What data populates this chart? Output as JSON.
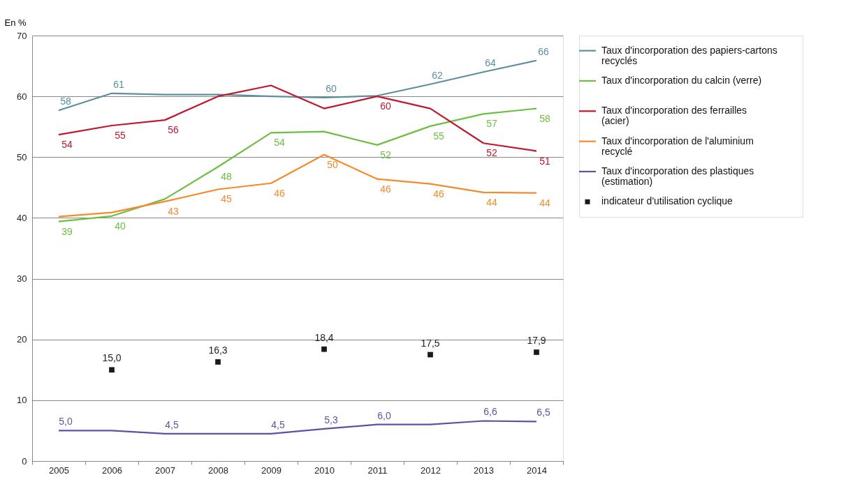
{
  "chart_data": {
    "type": "line",
    "ylabel": "En %",
    "categories": [
      "2005",
      "2006",
      "2007",
      "2008",
      "2009",
      "2010",
      "2011",
      "2012",
      "2013",
      "2014"
    ],
    "ylim": [
      0,
      70
    ],
    "yticks": [
      0,
      10,
      20,
      30,
      40,
      50,
      60,
      70
    ],
    "grid": "y",
    "legend": "right",
    "series": [
      {
        "name": "Taux d'incorporation des papiers-cartons recyclés",
        "color": "#5b8fa0",
        "values": [
          57.7,
          60.5,
          60.3,
          60.3,
          60.0,
          59.8,
          60.1,
          62.0,
          64.0,
          65.9
        ],
        "value_labels": [
          "58",
          "61",
          null,
          null,
          null,
          "60",
          null,
          "62",
          "64",
          "66"
        ]
      },
      {
        "name": "Taux d'incorporation du calcin (verre)",
        "color": "#6cbf3f",
        "values": [
          39.4,
          40.3,
          43.1,
          48.4,
          54.0,
          54.2,
          52.0,
          55.1,
          57.1,
          58.0
        ],
        "value_labels": [
          "39",
          "40",
          null,
          "48",
          "54",
          null,
          "52",
          "55",
          "57",
          "58"
        ]
      },
      {
        "name": "Taux d'incorporation des ferrailles (acier)",
        "color": "#c0172d",
        "values": [
          53.7,
          55.2,
          56.1,
          60.0,
          61.8,
          58.0,
          60.0,
          58.0,
          52.3,
          51.0
        ],
        "value_labels": [
          "54",
          "55",
          "56",
          null,
          null,
          null,
          "60",
          null,
          "52",
          "51"
        ]
      },
      {
        "name": "Taux d'incorporation de l'aluminium recyclé",
        "color": "#f7892a",
        "values": [
          40.2,
          40.9,
          42.7,
          44.7,
          45.7,
          50.4,
          46.4,
          45.6,
          44.2,
          44.1
        ],
        "value_labels": [
          null,
          null,
          "43",
          "45",
          "46",
          "50",
          "46",
          "46",
          "44",
          "44"
        ]
      },
      {
        "name": "Taux d'incorporation des plastiques (estimation)",
        "color": "#5853a5",
        "values": [
          5.0,
          5.0,
          4.5,
          4.5,
          4.5,
          5.3,
          6.0,
          6.0,
          6.6,
          6.5
        ],
        "value_labels": [
          "5,0",
          null,
          "4,5",
          null,
          "4,5",
          "5,3",
          "6,0",
          null,
          "6,6",
          "6,5"
        ]
      },
      {
        "name": "indicateur d'utilisation cyclique",
        "type": "scatter",
        "marker": "square",
        "color": "#1a1a1a",
        "values": [
          null,
          15.0,
          null,
          16.3,
          null,
          18.4,
          null,
          17.5,
          null,
          17.9
        ],
        "value_labels": [
          null,
          "15,0",
          null,
          "16,3",
          null,
          "18,4",
          null,
          "17,5",
          null,
          "17,9"
        ]
      }
    ]
  }
}
